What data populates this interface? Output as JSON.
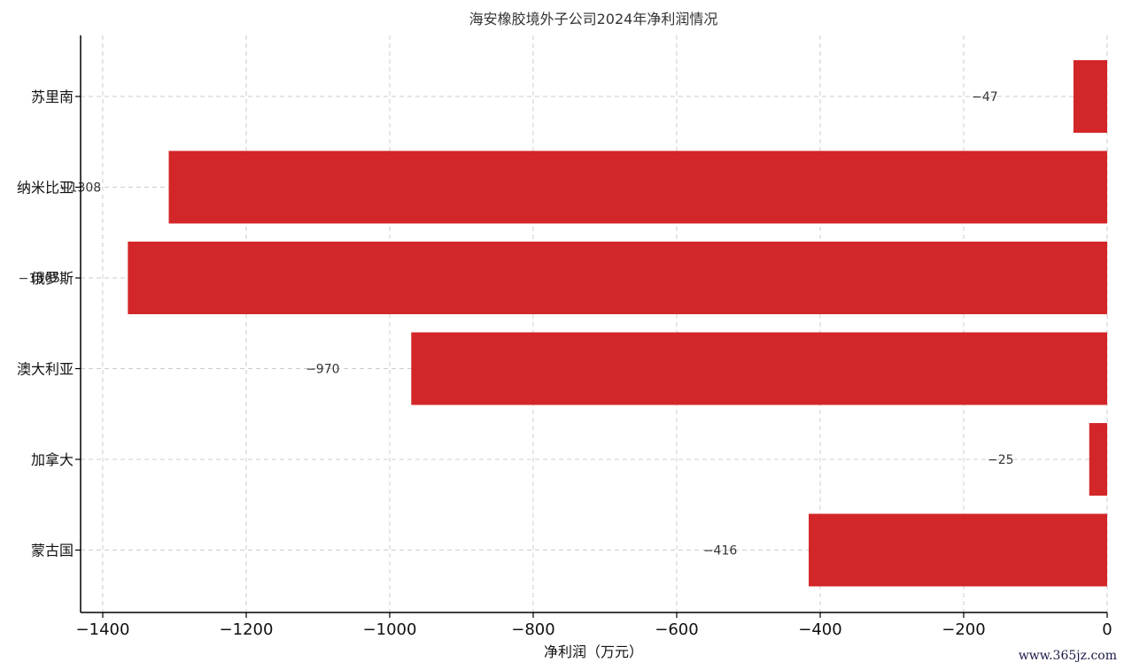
{
  "chart_data": {
    "type": "bar",
    "orientation": "horizontal",
    "title": "海安橡胶境外子公司2024年净利润情况",
    "xlabel": "净利润（万元）",
    "ylabel": "",
    "categories": [
      "苏里南",
      "纳米比亚",
      "俄罗斯",
      "澳大利亚",
      "加拿大",
      "蒙古国"
    ],
    "values": [
      -47,
      -1308,
      -1365,
      -970,
      -25,
      -416
    ],
    "data_labels": [
      "−47",
      "−1308",
      "−1365",
      "−970",
      "−25",
      "−416"
    ],
    "xlim": [
      -1430,
      0
    ],
    "xticks": [
      -1400,
      -1200,
      -1000,
      -800,
      -600,
      -400,
      -200,
      0
    ],
    "xtick_labels": [
      "−1400",
      "−1200",
      "−1000",
      "−800",
      "−600",
      "−400",
      "−200",
      "0"
    ],
    "grid": true,
    "bar_color": "#d32628"
  },
  "watermark": "www.365jz.com"
}
